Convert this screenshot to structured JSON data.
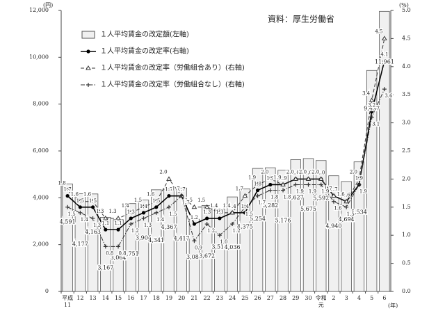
{
  "chart_data": {
    "type": "bar-line",
    "annotation": "資料：厚生労働省",
    "y_unit": "(円)",
    "y2_unit": "(%)",
    "x_unit": "(年)",
    "categories": [
      "平成\n11",
      "12",
      "13",
      "14",
      "15",
      "16",
      "17",
      "18",
      "19",
      "20",
      "21",
      "22",
      "23",
      "24",
      "25",
      "26",
      "27",
      "28",
      "29",
      "30",
      "令和\n元",
      "2",
      "3",
      "4",
      "5",
      "6"
    ],
    "ylim": [
      0,
      12000
    ],
    "yticks": [
      0,
      {
        "value": 2000,
        "label": "2,000"
      },
      {
        "value": 4000,
        "label": "4,000"
      },
      {
        "value": 6000,
        "label": "6,000"
      },
      {
        "value": 8000,
        "label": "8,000"
      },
      {
        "value": 10000,
        "label": "10,000"
      },
      {
        "value": 12000,
        "label": "12,000"
      }
    ],
    "y2lim": [
      0,
      5
    ],
    "y2ticks": [
      {
        "value": 0,
        "label": "0.0"
      },
      0.5,
      {
        "value": 1,
        "label": "1.0"
      },
      1.5,
      {
        "value": 2,
        "label": "2.0"
      },
      2.5,
      {
        "value": 3,
        "label": "3.0"
      },
      3.5,
      {
        "value": 4,
        "label": "4.0"
      },
      4.5,
      {
        "value": 5,
        "label": "5.0"
      }
    ],
    "series": [
      {
        "name": "１人平均賃金の改定額(左軸)",
        "type": "bar",
        "color": "#f0f0f0",
        "values": [
          4591,
          4177,
          4163,
          3167,
          3064,
          3751,
          3904,
          4341,
          4367,
          4417,
          3083,
          3672,
          3513,
          4036,
          4375,
          5254,
          5282,
          5176,
          5627,
          5675,
          5592,
          4940,
          4694,
          5534,
          9437,
          11961
        ],
        "value_labels": [
          "4,591",
          "4,177",
          "4,163",
          "3,167",
          "3,064",
          "3,751",
          "3,904",
          "4,341",
          "4,367",
          "4,417",
          "3,083",
          "3,672",
          "3,513",
          "4,036",
          "4,375",
          "5,254",
          "5,282",
          "5,176",
          "5,627",
          "5,675",
          "5,592",
          "4,940",
          "4,694",
          "5,534",
          "9,437",
          "11,961"
        ]
      },
      {
        "name": "１人平均賃金の改定率(右軸)",
        "type": "line",
        "axis": "y2",
        "color": "#000000",
        "style": "solid",
        "values": [
          1.7,
          1.5,
          1.5,
          1.1,
          1.1,
          1.3,
          1.4,
          1.5,
          1.7,
          1.7,
          1.2,
          1.3,
          1.3,
          1.4,
          1.4,
          1.8,
          1.9,
          1.9,
          2.0,
          2.0,
          2.0,
          1.7,
          1.6,
          1.9,
          3.2,
          4.1
        ],
        "value_labels": [
          "1.7",
          "1.5",
          "1.5",
          "1.1",
          "1.1",
          "1.3",
          "1.4",
          "1.5",
          "1.7",
          "1.7",
          "1.2",
          "1.3",
          "1.3",
          "1.4",
          "1.4",
          "1.8",
          "1.9",
          "1.9",
          "2.0",
          "2.0",
          "2.0",
          "1.7",
          "1.6",
          "1.9",
          "3.2",
          "4.1"
        ]
      },
      {
        "name": "１人平均賃金の改定率（労働組合あり）(右軸)",
        "type": "line",
        "axis": "y2",
        "color": "#333333",
        "style": "dashed",
        "values": [
          1.8,
          1.6,
          1.6,
          1.3,
          1.3,
          1.4,
          1.5,
          1.6,
          2.0,
          1.7,
          1.5,
          1.5,
          1.4,
          1.4,
          1.7,
          1.9,
          2.0,
          1.9,
          2.0,
          2.0,
          2.0,
          1.7,
          1.6,
          2.0,
          3.4,
          4.5
        ],
        "value_labels": [
          "1.8",
          "1.6",
          "1.6",
          "1.3",
          "1.3",
          "1.4",
          "1.5",
          "1.6",
          "2.0",
          "1.7",
          "1.5",
          "1.5",
          "1.4",
          "1.4",
          "1.7",
          "1.9",
          "2.0",
          "1.9",
          "2.0",
          "2.0",
          "2.0",
          "1.7",
          "1.6",
          "2.0",
          "3.4",
          "4.5"
        ]
      },
      {
        "name": "１人平均賃金の改定率（労働組合なし）(右軸)",
        "type": "line",
        "axis": "y2",
        "color": "#333333",
        "style": "dashdot",
        "values": [
          1.5,
          1.4,
          1.3,
          0.8,
          0.8,
          1.2,
          1.3,
          1.4,
          1.5,
          1.7,
          0.9,
          1.2,
          1.0,
          1.2,
          1.5,
          1.7,
          1.8,
          1.8,
          1.9,
          1.9,
          1.9,
          1.6,
          1.5,
          1.9,
          3.1,
          3.6
        ],
        "value_labels": [
          "1.5",
          "1.4",
          "1.3",
          "0.8",
          "0.8",
          "1.2",
          "1.3",
          "1.4",
          "1.5",
          "1.7",
          "0.9",
          "1.2",
          "1.0",
          "1.2",
          "1.5",
          "1.7",
          "1.8",
          "1.8",
          "1.9",
          "1.9",
          "1.9",
          "1.6",
          "1.5",
          "1.9",
          "3.1",
          "3.6"
        ]
      }
    ]
  }
}
